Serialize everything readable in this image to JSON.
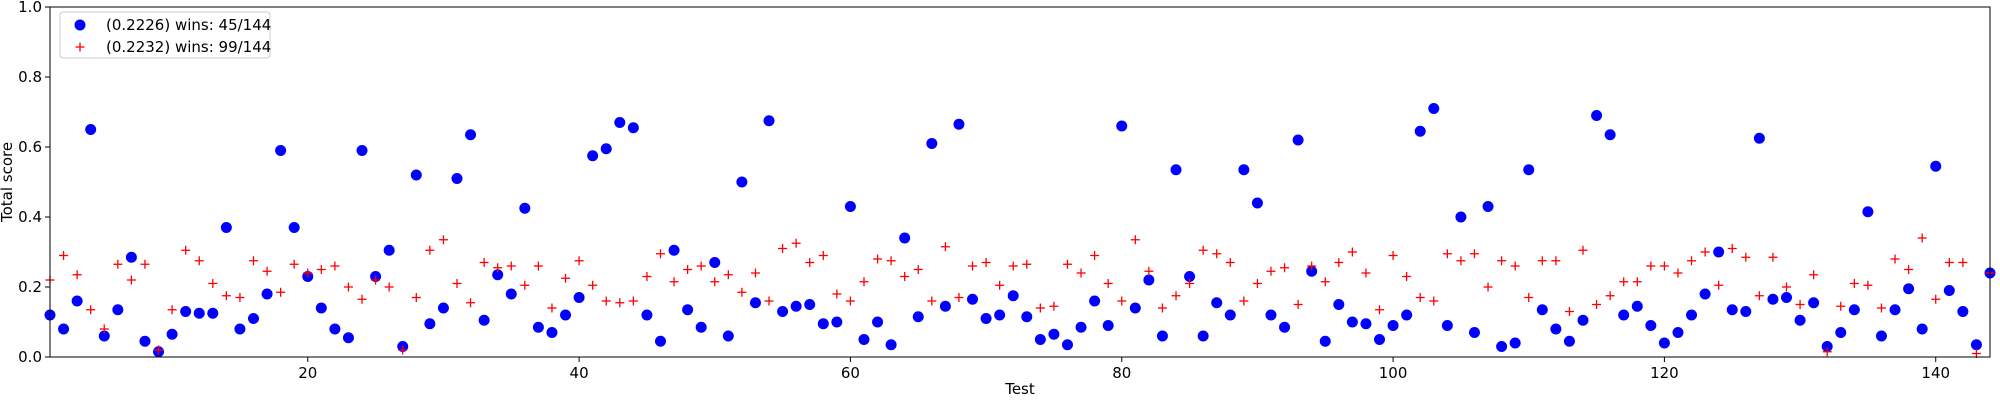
{
  "chart_data": {
    "type": "scatter",
    "xlabel": "Test",
    "ylabel": "Total score",
    "xlim": [
      1,
      144
    ],
    "ylim": [
      0,
      1.0
    ],
    "xticks": [
      20,
      40,
      60,
      80,
      100,
      120,
      140
    ],
    "yticks": [
      0.0,
      0.2,
      0.4,
      0.6,
      0.8,
      1.0
    ],
    "ytick_labels": [
      "0.0",
      "0.2",
      "0.4",
      "0.6",
      "0.8",
      "1.0"
    ],
    "grid": false,
    "legend_position": "top-left",
    "series": [
      {
        "name": "(0.2226) wins: 45/144",
        "marker": "circle",
        "color": "#0000ff",
        "x": [
          1,
          2,
          3,
          4,
          5,
          6,
          7,
          8,
          9,
          10,
          11,
          12,
          13,
          14,
          15,
          16,
          17,
          18,
          19,
          20,
          21,
          22,
          23,
          24,
          25,
          26,
          27,
          28,
          29,
          30,
          31,
          32,
          33,
          34,
          35,
          36,
          37,
          38,
          39,
          40,
          41,
          42,
          43,
          44,
          45,
          46,
          47,
          48,
          49,
          50,
          51,
          52,
          53,
          54,
          55,
          56,
          57,
          58,
          59,
          60,
          61,
          62,
          63,
          64,
          65,
          66,
          67,
          68,
          69,
          70,
          71,
          72,
          73,
          74,
          75,
          76,
          77,
          78,
          79,
          80,
          81,
          82,
          83,
          84,
          85,
          86,
          87,
          88,
          89,
          90,
          91,
          92,
          93,
          94,
          95,
          96,
          97,
          98,
          99,
          100,
          101,
          102,
          103,
          104,
          105,
          106,
          107,
          108,
          109,
          110,
          111,
          112,
          113,
          114,
          115,
          116,
          117,
          118,
          119,
          120,
          121,
          122,
          123,
          124,
          125,
          126,
          127,
          128,
          129,
          130,
          131,
          132,
          133,
          134,
          135,
          136,
          137,
          138,
          139,
          140,
          141,
          142,
          143,
          144
        ],
        "y": [
          0.12,
          0.08,
          0.16,
          0.65,
          0.06,
          0.135,
          0.285,
          0.045,
          0.015,
          0.065,
          0.13,
          0.125,
          0.125,
          0.37,
          0.08,
          0.11,
          0.18,
          0.59,
          0.37,
          0.23,
          0.14,
          0.08,
          0.055,
          0.59,
          0.23,
          0.305,
          0.03,
          0.52,
          0.095,
          0.14,
          0.51,
          0.635,
          0.105,
          0.235,
          0.18,
          0.425,
          0.085,
          0.07,
          0.12,
          0.17,
          0.575,
          0.595,
          0.67,
          0.655,
          0.12,
          0.045,
          0.305,
          0.135,
          0.085,
          0.27,
          0.06,
          0.5,
          0.155,
          0.675,
          0.13,
          0.145,
          0.15,
          0.095,
          0.1,
          0.43,
          0.05,
          0.1,
          0.035,
          0.34,
          0.115,
          0.61,
          0.145,
          0.665,
          0.165,
          0.11,
          0.12,
          0.175,
          0.115,
          0.05,
          0.065,
          0.035,
          0.085,
          0.16,
          0.09,
          0.66,
          0.14,
          0.22,
          0.06,
          0.535,
          0.23,
          0.06,
          0.155,
          0.12,
          0.535,
          0.44,
          0.12,
          0.085,
          0.62,
          0.245,
          0.045,
          0.15,
          0.1,
          0.095,
          0.05,
          0.09,
          0.12,
          0.645,
          0.71,
          0.09,
          0.4,
          0.07,
          0.43,
          0.03,
          0.04,
          0.535,
          0.135,
          0.08,
          0.045,
          0.105,
          0.69,
          0.635,
          0.12,
          0.145,
          0.09,
          0.04,
          0.07,
          0.12,
          0.18,
          0.3,
          0.135,
          0.13,
          0.625,
          0.165,
          0.17,
          0.105,
          0.155,
          0.03,
          0.07,
          0.135,
          0.415,
          0.06,
          0.135,
          0.195,
          0.08,
          0.545,
          0.19,
          0.13,
          0.035,
          0.24
        ]
      },
      {
        "name": "(0.2232) wins: 99/144",
        "marker": "plus",
        "color": "#ff0000",
        "x": [
          1,
          2,
          3,
          4,
          5,
          6,
          7,
          8,
          9,
          10,
          11,
          12,
          13,
          14,
          15,
          16,
          17,
          18,
          19,
          20,
          21,
          22,
          23,
          24,
          25,
          26,
          27,
          28,
          29,
          30,
          31,
          32,
          33,
          34,
          35,
          36,
          37,
          38,
          39,
          40,
          41,
          42,
          43,
          44,
          45,
          46,
          47,
          48,
          49,
          50,
          51,
          52,
          53,
          54,
          55,
          56,
          57,
          58,
          59,
          60,
          61,
          62,
          63,
          64,
          65,
          66,
          67,
          68,
          69,
          70,
          71,
          72,
          73,
          74,
          75,
          76,
          77,
          78,
          79,
          80,
          81,
          82,
          83,
          84,
          85,
          86,
          87,
          88,
          89,
          90,
          91,
          92,
          93,
          94,
          95,
          96,
          97,
          98,
          99,
          100,
          101,
          102,
          103,
          104,
          105,
          106,
          107,
          108,
          109,
          110,
          111,
          112,
          113,
          114,
          115,
          116,
          117,
          118,
          119,
          120,
          121,
          122,
          123,
          124,
          125,
          126,
          127,
          128,
          129,
          130,
          131,
          132,
          133,
          134,
          135,
          136,
          137,
          138,
          139,
          140,
          141,
          142,
          143,
          144
        ],
        "y": [
          0.22,
          0.29,
          0.235,
          0.135,
          0.08,
          0.265,
          0.22,
          0.265,
          0.02,
          0.135,
          0.305,
          0.275,
          0.21,
          0.175,
          0.17,
          0.275,
          0.245,
          0.185,
          0.265,
          0.24,
          0.25,
          0.26,
          0.2,
          0.165,
          0.22,
          0.2,
          0.02,
          0.17,
          0.305,
          0.335,
          0.21,
          0.155,
          0.27,
          0.255,
          0.26,
          0.205,
          0.26,
          0.14,
          0.225,
          0.275,
          0.205,
          0.16,
          0.155,
          0.16,
          0.23,
          0.295,
          0.215,
          0.25,
          0.26,
          0.215,
          0.235,
          0.185,
          0.24,
          0.16,
          0.31,
          0.325,
          0.27,
          0.29,
          0.18,
          0.16,
          0.215,
          0.28,
          0.275,
          0.23,
          0.25,
          0.16,
          0.315,
          0.17,
          0.26,
          0.27,
          0.205,
          0.26,
          0.265,
          0.14,
          0.145,
          0.265,
          0.24,
          0.29,
          0.21,
          0.16,
          0.335,
          0.245,
          0.14,
          0.175,
          0.21,
          0.305,
          0.295,
          0.27,
          0.16,
          0.21,
          0.245,
          0.255,
          0.15,
          0.26,
          0.215,
          0.27,
          0.3,
          0.24,
          0.135,
          0.29,
          0.23,
          0.17,
          0.16,
          0.295,
          0.275,
          0.295,
          0.2,
          0.275,
          0.26,
          0.17,
          0.275,
          0.275,
          0.13,
          0.305,
          0.15,
          0.175,
          0.215,
          0.215,
          0.26,
          0.26,
          0.24,
          0.275,
          0.3,
          0.205,
          0.31,
          0.285,
          0.175,
          0.285,
          0.2,
          0.15,
          0.235,
          0.015,
          0.145,
          0.21,
          0.205,
          0.14,
          0.28,
          0.25,
          0.34,
          0.165,
          0.27,
          0.27,
          0.01,
          0.24
        ]
      }
    ]
  }
}
